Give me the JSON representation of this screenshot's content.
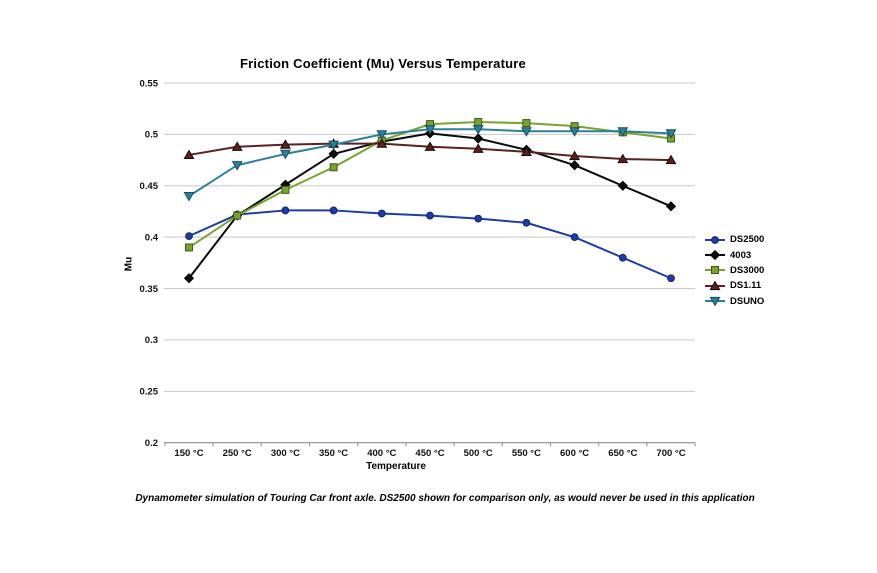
{
  "chart_data": {
    "type": "line",
    "title": "Friction Coefficient (Mu) Versus Temperature",
    "xlabel": "Temperature",
    "ylabel": "Mu",
    "ylim": [
      0.2,
      0.55
    ],
    "ytick_step": 0.05,
    "ytick_labels": [
      "0.2",
      "0.25",
      "0.3",
      "0.35",
      "0.4",
      "0.45",
      "0.5",
      "0.55"
    ],
    "grid": true,
    "legend_position": "right",
    "categories": [
      "150 °C",
      "250 °C",
      "300 °C",
      "350 °C",
      "400 °C",
      "450 °C",
      "500 °C",
      "550 °C",
      "600 °C",
      "650 °C",
      "700 °C"
    ],
    "series": [
      {
        "name": "DS2500",
        "marker": "circle",
        "color": "#1E3CA8",
        "edge": "#14265F",
        "values": [
          0.401,
          0.422,
          0.426,
          0.426,
          0.423,
          0.421,
          0.418,
          0.414,
          0.4,
          0.38,
          0.36
        ]
      },
      {
        "name": "4003",
        "marker": "diamond",
        "color": "#0B0B0B",
        "edge": "#000000",
        "values": [
          0.36,
          0.421,
          0.451,
          0.481,
          0.493,
          0.501,
          0.496,
          0.485,
          0.47,
          0.45,
          0.43
        ]
      },
      {
        "name": "DS3000",
        "marker": "square",
        "color": "#77A32E",
        "edge": "#3F5B15",
        "values": [
          0.39,
          0.421,
          0.446,
          0.468,
          0.494,
          0.51,
          0.512,
          0.511,
          0.508,
          0.502,
          0.496
        ]
      },
      {
        "name": "DS1.11",
        "marker": "triangle-up",
        "color": "#5D2020",
        "edge": "#1C0707",
        "values": [
          0.48,
          0.488,
          0.49,
          0.491,
          0.491,
          0.488,
          0.486,
          0.483,
          0.479,
          0.476,
          0.475
        ]
      },
      {
        "name": "DSUNO",
        "marker": "triangle-down",
        "color": "#2E8099",
        "edge": "#17505F",
        "values": [
          0.44,
          0.47,
          0.481,
          0.49,
          0.5,
          0.505,
          0.505,
          0.503,
          0.503,
          0.503,
          0.501
        ]
      }
    ],
    "footnote": "Dynamometer simulation of Touring Car front axle. DS2500 shown for comparison only, as would never be used in this application"
  },
  "colors": {
    "gridline": "#C8C8C8",
    "axis": "#A0A0A0",
    "background": "#FFFFFF"
  }
}
